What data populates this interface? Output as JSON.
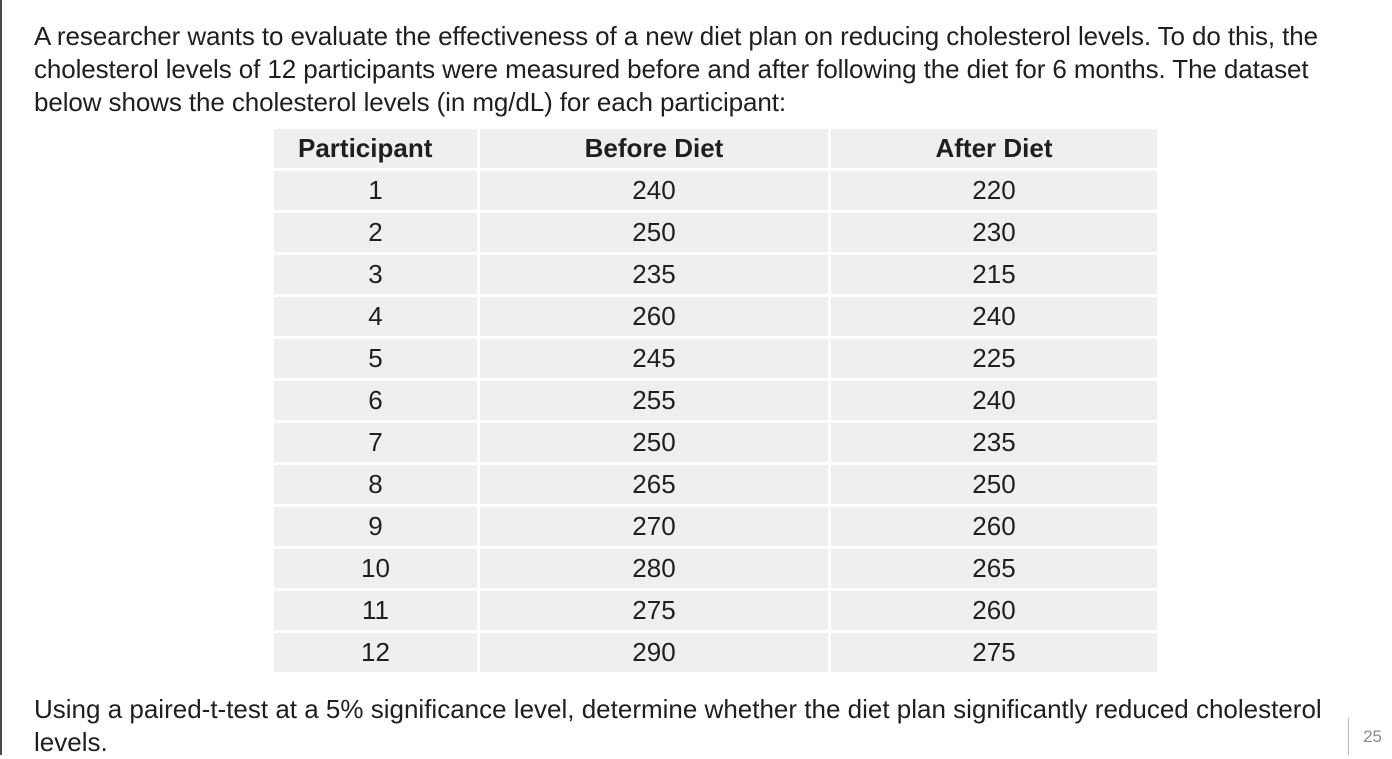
{
  "intro_text": "A researcher wants to evaluate the effectiveness of a new diet plan on reducing cholesterol levels. To do this, the cholesterol levels of 12 participants were measured before and after following the diet for 6 months. The dataset below shows the cholesterol levels (in mg/dL) for each participant:",
  "table": {
    "headers": [
      "Participant",
      "Before Diet",
      "After Diet"
    ],
    "rows": [
      [
        "1",
        "240",
        "220"
      ],
      [
        "2",
        "250",
        "230"
      ],
      [
        "3",
        "235",
        "215"
      ],
      [
        "4",
        "260",
        "240"
      ],
      [
        "5",
        "245",
        "225"
      ],
      [
        "6",
        "255",
        "240"
      ],
      [
        "7",
        "250",
        "235"
      ],
      [
        "8",
        "265",
        "250"
      ],
      [
        "9",
        "270",
        "260"
      ],
      [
        "10",
        "280",
        "265"
      ],
      [
        "11",
        "275",
        "260"
      ],
      [
        "12",
        "290",
        "275"
      ]
    ]
  },
  "question_text": "Using a paired-t-test at a 5% significance level, determine whether the diet plan significantly reduced cholesterol levels.",
  "page_number": "25"
}
